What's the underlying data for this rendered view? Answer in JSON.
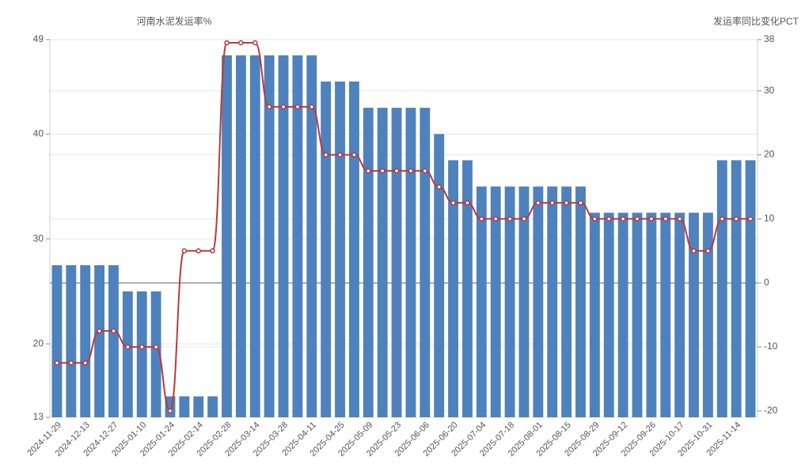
{
  "chart_data": {
    "type": "bar_line",
    "y_label": "河南水泥发运率%",
    "y2_label": "发运率同比变化PCT",
    "categories": [
      "2024-11-29",
      null,
      "2024-12-13",
      null,
      "2024-12-27",
      null,
      "2025-01-10",
      null,
      "2025-01-24",
      null,
      "2025-02-14",
      null,
      "2025-02-28",
      null,
      "2025-03-14",
      null,
      "2025-03-28",
      null,
      "2025-04-11",
      null,
      "2025-04-25",
      null,
      "2025-05-09",
      null,
      "2025-05-23",
      null,
      "2025-06-06",
      null,
      "2025-06-20",
      null,
      "2025-07-04",
      null,
      "2025-07-18",
      null,
      "2025-08-01",
      null,
      "2025-08-15",
      null,
      "2025-08-29",
      null,
      "2025-09-12",
      null,
      "2025-09-26",
      null,
      "2025-10-17",
      null,
      "2025-10-31",
      null,
      "2025-11-14",
      null
    ],
    "series": [
      {
        "type": "bar",
        "color": "#4f81bd",
        "values": [
          27.5,
          27.5,
          27.5,
          27.5,
          27.5,
          25,
          25,
          25,
          15,
          15,
          15,
          15,
          47.5,
          47.5,
          47.5,
          47.5,
          47.5,
          47.5,
          47.5,
          45,
          45,
          45,
          42.5,
          42.5,
          42.5,
          42.5,
          42.5,
          40,
          37.5,
          37.5,
          35,
          35,
          35,
          35,
          35,
          35,
          35,
          35,
          32.5,
          32.5,
          32.5,
          32.5,
          32.5,
          32.5,
          32.5,
          32.5,
          32.5,
          37.5,
          37.5,
          37.5
        ]
      },
      {
        "type": "line",
        "axis": "y2",
        "color": "#b83b3b",
        "values": [
          -12.5,
          -12.5,
          -12.5,
          -7.5,
          -7.5,
          -10,
          -10,
          -10,
          -20,
          5,
          5,
          5,
          37.5,
          37.5,
          37.5,
          27.5,
          27.5,
          27.5,
          27.5,
          20,
          20,
          20,
          17.5,
          17.5,
          17.5,
          17.5,
          17.5,
          15,
          12.5,
          12.5,
          10,
          10,
          10,
          10,
          12.5,
          12.5,
          12.5,
          12.5,
          10,
          10,
          10,
          10,
          10,
          10,
          10,
          5,
          5,
          10,
          10,
          10
        ]
      }
    ],
    "ylim": [
      13,
      49
    ],
    "yticks": [
      13,
      20,
      30,
      40,
      49
    ],
    "y2lim": [
      -21,
      38
    ],
    "y2ticks": [
      -20,
      -10,
      0,
      10,
      20,
      30,
      38
    ],
    "grid": true
  }
}
